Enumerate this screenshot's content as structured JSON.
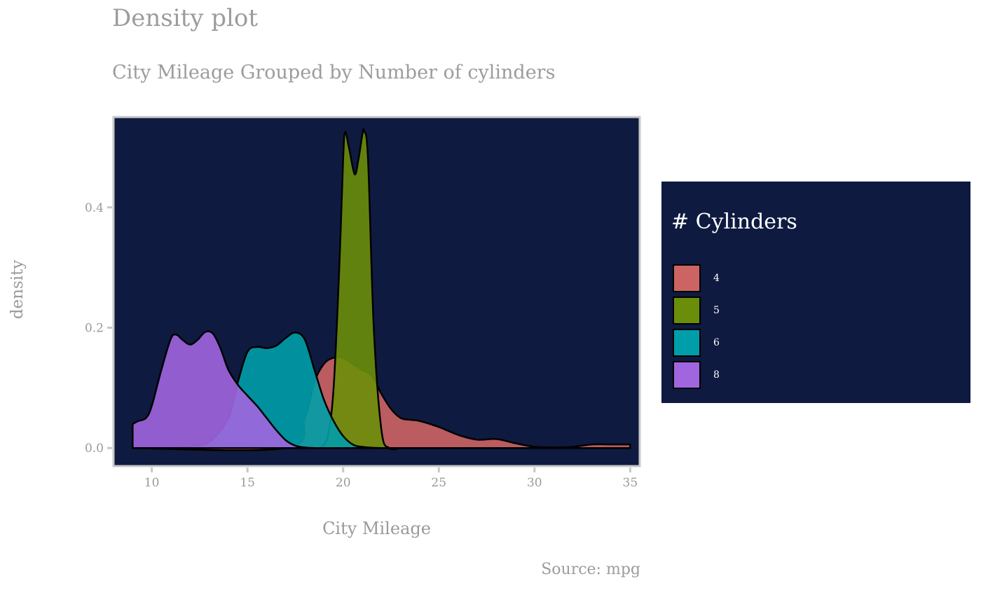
{
  "title": "Density plot",
  "subtitle": "City Mileage Grouped by Number of cylinders",
  "caption": "Source: mpg",
  "chart_data": {
    "type": "area",
    "xlabel": "City Mileage",
    "ylabel": "density",
    "xlim": [
      8,
      35.5
    ],
    "ylim": [
      -0.03,
      0.55
    ],
    "xticks": [
      10,
      15,
      20,
      25,
      30,
      35
    ],
    "yticks": [
      0.0,
      0.2,
      0.4
    ],
    "ytick_labels": [
      "0.0",
      "0.2",
      "0.4"
    ],
    "grid": false,
    "panel_background": "#0f1a40",
    "legend_title": "# Cylinders",
    "legend_position": "right",
    "series": [
      {
        "name": "4",
        "color": "#cd6464",
        "x": [
          9,
          17,
          18,
          18.5,
          19,
          19.5,
          20,
          20.5,
          21,
          21.5,
          22,
          22.5,
          23,
          23.5,
          24,
          25,
          26,
          27,
          28,
          29,
          30,
          31,
          32,
          33,
          34,
          35
        ],
        "y": [
          0,
          0,
          0.05,
          0.11,
          0.14,
          0.15,
          0.15,
          0.14,
          0.13,
          0.12,
          0.09,
          0.065,
          0.05,
          0.047,
          0.045,
          0.035,
          0.022,
          0.014,
          0.015,
          0.008,
          0.002,
          0.001,
          0.002,
          0.006,
          0.006,
          0.006
        ]
      },
      {
        "name": "5",
        "color": "#6b8e0a",
        "x": [
          18.8,
          19.2,
          19.5,
          19.8,
          20,
          20.1,
          20.3,
          20.6,
          20.8,
          21,
          21.1,
          21.3,
          21.6,
          22,
          22.4,
          23
        ],
        "y": [
          0,
          0.02,
          0.1,
          0.3,
          0.48,
          0.525,
          0.5,
          0.455,
          0.48,
          0.52,
          0.527,
          0.48,
          0.2,
          0.03,
          0,
          0
        ]
      },
      {
        "name": "6",
        "color": "#009ea8",
        "x": [
          9,
          10,
          11,
          12,
          13,
          14,
          14.5,
          15,
          15.5,
          16,
          16.5,
          17,
          17.5,
          18,
          18.5,
          19,
          19.5,
          20,
          20.5,
          21,
          22,
          23
        ],
        "y": [
          0,
          0,
          0,
          0.003,
          0.01,
          0.05,
          0.11,
          0.16,
          0.168,
          0.166,
          0.17,
          0.183,
          0.192,
          0.18,
          0.13,
          0.08,
          0.045,
          0.02,
          0.006,
          0.002,
          0,
          0
        ]
      },
      {
        "name": "8",
        "color": "#a165df",
        "x": [
          9,
          9.3,
          9.7,
          10,
          10.5,
          11,
          11.3,
          11.6,
          12,
          12.4,
          12.8,
          13.2,
          13.6,
          14,
          14.5,
          15,
          15.5,
          16,
          16.5,
          17,
          17.5,
          18,
          18.5,
          19
        ],
        "y": [
          0.04,
          0.045,
          0.05,
          0.07,
          0.13,
          0.182,
          0.188,
          0.18,
          0.172,
          0.18,
          0.193,
          0.19,
          0.165,
          0.13,
          0.105,
          0.087,
          0.07,
          0.05,
          0.03,
          0.013,
          0.004,
          0.001,
          0,
          0
        ]
      }
    ]
  }
}
